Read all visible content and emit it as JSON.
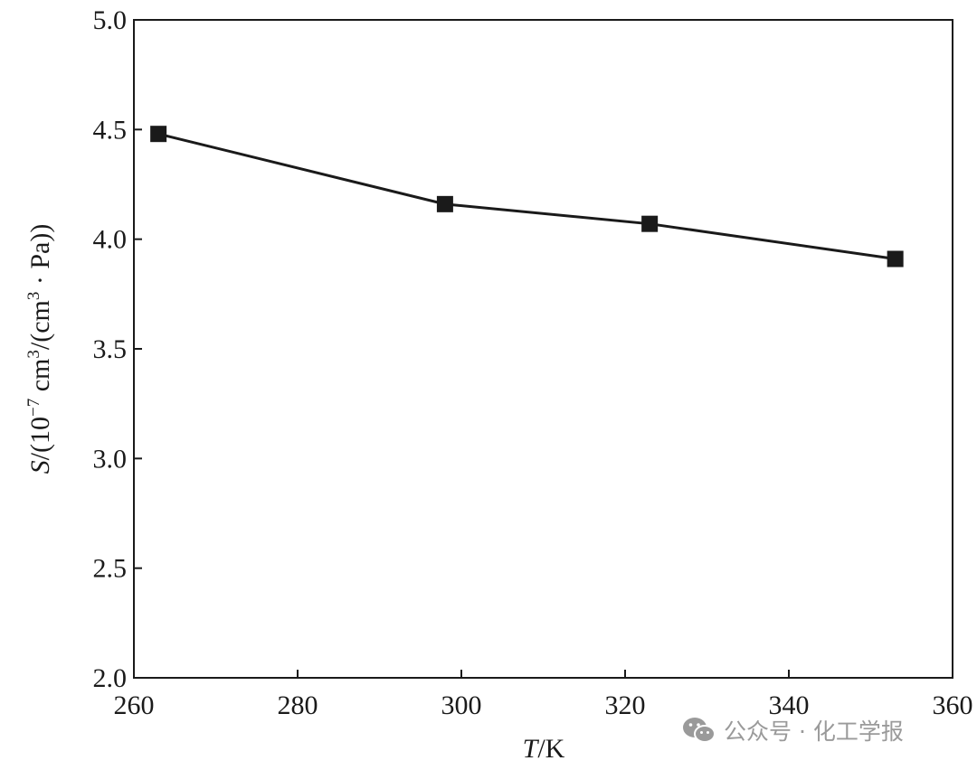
{
  "chart_data": {
    "type": "line",
    "x": [
      263,
      298,
      323,
      353
    ],
    "series": [
      {
        "values": [
          4.48,
          4.16,
          4.07,
          3.91
        ]
      }
    ],
    "xlabel": {
      "italic": "T",
      "rest": "/K"
    },
    "ylabel": {
      "italic": "S",
      "p1": "/(10",
      "sup1": "−7",
      "p2": " cm",
      "sup2": "3",
      "p3": "/(cm",
      "sup3": "3",
      "p4": " · Pa))"
    },
    "xticks": [
      "260",
      "280",
      "300",
      "320",
      "340",
      "360"
    ],
    "yticks": [
      "2.0",
      "2.5",
      "3.0",
      "3.5",
      "4.0",
      "4.5",
      "5.0"
    ],
    "xlim": [
      260,
      360
    ],
    "ylim": [
      2.0,
      5.0
    ],
    "marker": "square",
    "grid": false,
    "color": "#1a1a1a"
  },
  "watermark": {
    "icon": "wechat-icon",
    "text": "公众号 · 化工学报",
    "color": "#9a9a9a"
  }
}
